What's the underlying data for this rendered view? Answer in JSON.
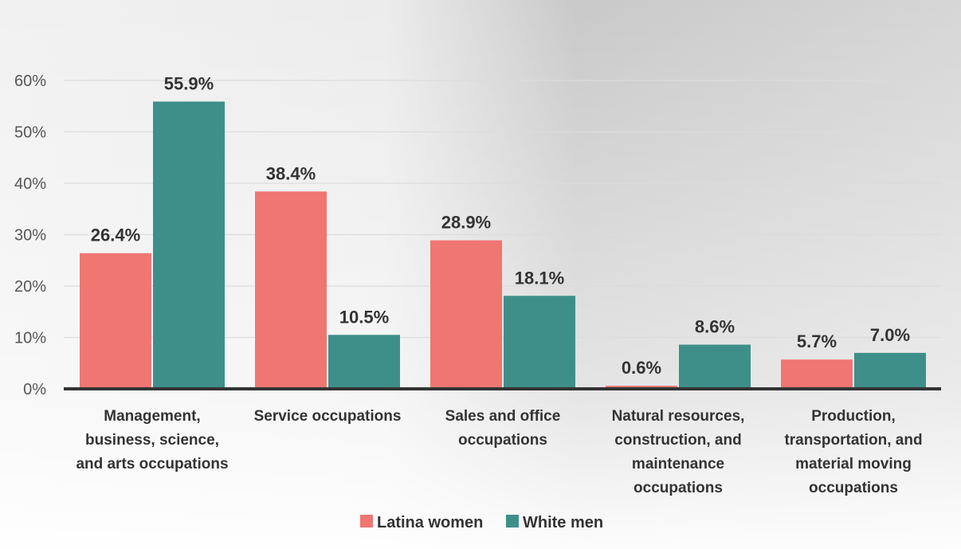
{
  "chart_data": {
    "type": "bar",
    "categories": [
      [
        "Management,",
        "business, science,",
        "and arts occupations"
      ],
      [
        "Service occupations"
      ],
      [
        "Sales and office",
        "occupations"
      ],
      [
        "Natural resources,",
        "construction, and",
        "maintenance",
        "occupations"
      ],
      [
        "Production,",
        "transportation, and",
        "material moving",
        "occupations"
      ]
    ],
    "series": [
      {
        "name": "Latina women",
        "color": "#F07672",
        "values": [
          26.4,
          38.4,
          28.9,
          0.6,
          5.7
        ],
        "labels": [
          "26.4%",
          "38.4%",
          "28.9%",
          "0.6%",
          "5.7%"
        ]
      },
      {
        "name": "White men",
        "color": "#3E8F8A",
        "values": [
          55.9,
          10.5,
          18.1,
          8.6,
          7.0
        ],
        "labels": [
          "55.9%",
          "10.5%",
          "18.1%",
          "8.6%",
          "7.0%"
        ]
      }
    ],
    "yticks": [
      "0%",
      "10%",
      "20%",
      "30%",
      "40%",
      "50%",
      "60%"
    ],
    "ylim": [
      0,
      60
    ],
    "grid": true,
    "legend": "bottom-center"
  }
}
